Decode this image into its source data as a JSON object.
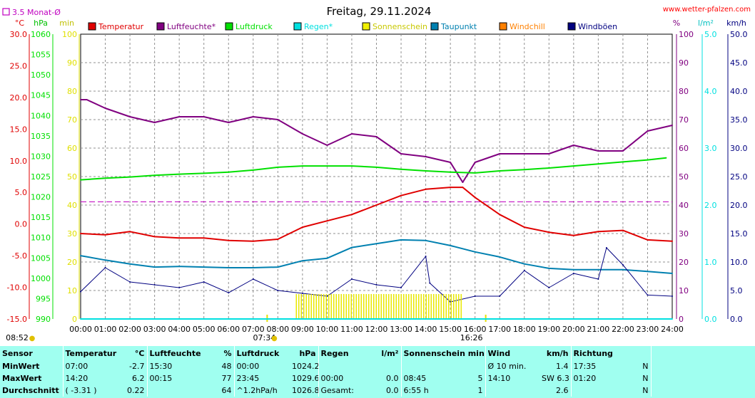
{
  "header": {
    "title": "Freitag, 29.11.2024",
    "site": "www.wetter-pfalzen.com",
    "avg_label": "3.5 Monat-Ø"
  },
  "units": {
    "left1": "°C",
    "left2": "hPa",
    "left3": "min",
    "right1": "%",
    "right2": "l/m²",
    "right3": "km/h"
  },
  "legend": [
    {
      "name": "Temperatur",
      "color": "#e00000"
    },
    {
      "name": "Luftfeuchte*",
      "color": "#800080"
    },
    {
      "name": "Luftdruck",
      "color": "#00e000"
    },
    {
      "name": "Regen*",
      "color": "#00e0e0"
    },
    {
      "name": "Sonnenschein",
      "color": "#f0f000"
    },
    {
      "name": "Taupunkt",
      "color": "#0080b0"
    },
    {
      "name": "Windchill",
      "color": "#ff8000"
    },
    {
      "name": "Windböen",
      "color": "#000080"
    }
  ],
  "axes": {
    "temp_ticks": [
      "30.0",
      "25.0",
      "20.0",
      "15.0",
      "10.0",
      "5.0",
      "0.0",
      "-5.0",
      "-10.0",
      "-15.0"
    ],
    "pressure_ticks": [
      "1060",
      "1055",
      "1050",
      "1045",
      "1040",
      "1035",
      "1030",
      "1025",
      "1020",
      "1015",
      "1010",
      "1005",
      "1000",
      "995",
      "990"
    ],
    "sun_ticks": [
      "100",
      "90",
      "80",
      "70",
      "60",
      "50",
      "40",
      "30",
      "20",
      "10",
      "0"
    ],
    "humidity_ticks": [
      "100",
      "90",
      "80",
      "70",
      "60",
      "50",
      "40",
      "30",
      "20",
      "10",
      "0"
    ],
    "rain_ticks": [
      "5.0",
      "4.0",
      "3.0",
      "2.0",
      "1.0",
      "0.0"
    ],
    "wind_ticks": [
      "50.0",
      "45.0",
      "40.0",
      "35.0",
      "30.0",
      "25.0",
      "20.0",
      "15.0",
      "10.0",
      "5.0",
      "0.0"
    ],
    "x_ticks": [
      "00:00",
      "01:00",
      "02:00",
      "03:00",
      "04:00",
      "05:00",
      "06:00",
      "07:00",
      "08:00",
      "09:00",
      "10:00",
      "11:00",
      "12:00",
      "13:00",
      "14:00",
      "15:00",
      "16:00",
      "17:00",
      "18:00",
      "19:00",
      "20:00",
      "21:00",
      "22:00",
      "23:00",
      "24:00"
    ],
    "sunrise": "07:34",
    "sunset": "16:26",
    "daylight": "08:52",
    "colors": {
      "temp": "#e00000",
      "pressure": "#00e000",
      "sun": "#e0e000",
      "humidity": "#800080",
      "rain": "#00e0e0",
      "wind": "#000080"
    }
  },
  "chart_data": {
    "type": "line",
    "title": "Freitag, 29.11.2024",
    "x_range": [
      "00:00",
      "24:00"
    ],
    "monthly_avg_temp": 3.5,
    "series": [
      {
        "name": "Temperatur",
        "axis": "°C",
        "ylim": [
          -15,
          30
        ],
        "x": [
          "00:00",
          "01:00",
          "02:00",
          "03:00",
          "04:00",
          "05:00",
          "06:00",
          "07:00",
          "08:00",
          "09:00",
          "10:00",
          "11:00",
          "12:00",
          "13:00",
          "14:00",
          "15:00",
          "15:30",
          "16:00",
          "17:00",
          "18:00",
          "19:00",
          "20:00",
          "21:00",
          "22:00",
          "23:00",
          "24:00"
        ],
        "y": [
          -1.5,
          -1.7,
          -1.2,
          -2.0,
          -2.2,
          -2.2,
          -2.6,
          -2.7,
          -2.4,
          -0.5,
          0.5,
          1.5,
          3.0,
          4.5,
          5.5,
          5.8,
          5.8,
          4.2,
          1.5,
          -0.5,
          -1.3,
          -1.8,
          -1.2,
          -1.0,
          -2.5,
          -2.7
        ]
      },
      {
        "name": "Luftfeuchte*",
        "axis": "%",
        "ylim": [
          0,
          100
        ],
        "x": [
          "00:00",
          "00:15",
          "01:00",
          "02:00",
          "03:00",
          "04:00",
          "05:00",
          "06:00",
          "07:00",
          "08:00",
          "09:00",
          "10:00",
          "11:00",
          "12:00",
          "13:00",
          "14:00",
          "15:00",
          "15:30",
          "16:00",
          "17:00",
          "18:00",
          "19:00",
          "20:00",
          "21:00",
          "22:00",
          "23:00",
          "24:00"
        ],
        "y": [
          77,
          77,
          74,
          71,
          69,
          71,
          71,
          69,
          71,
          70,
          65,
          61,
          65,
          64,
          58,
          57,
          55,
          48,
          55,
          58,
          58,
          58,
          61,
          59,
          59,
          66,
          68
        ]
      },
      {
        "name": "Luftdruck",
        "axis": "hPa",
        "ylim": [
          990,
          1060
        ],
        "x": [
          "00:00",
          "01:00",
          "02:00",
          "03:00",
          "04:00",
          "05:00",
          "06:00",
          "07:00",
          "08:00",
          "09:00",
          "10:00",
          "11:00",
          "12:00",
          "13:00",
          "14:00",
          "15:00",
          "16:00",
          "17:00",
          "18:00",
          "19:00",
          "20:00",
          "21:00",
          "22:00",
          "23:00",
          "23:45"
        ],
        "y": [
          1024.2,
          1024.6,
          1024.9,
          1025.3,
          1025.6,
          1025.8,
          1026.1,
          1026.6,
          1027.3,
          1027.6,
          1027.6,
          1027.6,
          1027.3,
          1026.8,
          1026.4,
          1026.1,
          1025.9,
          1026.4,
          1026.7,
          1027.1,
          1027.6,
          1028.1,
          1028.6,
          1029.1,
          1029.6
        ]
      },
      {
        "name": "Taupunkt",
        "axis": "°C",
        "ylim": [
          -15,
          30
        ],
        "x": [
          "00:00",
          "01:00",
          "02:00",
          "03:00",
          "04:00",
          "05:00",
          "06:00",
          "07:00",
          "08:00",
          "09:00",
          "10:00",
          "11:00",
          "12:00",
          "13:00",
          "14:00",
          "15:00",
          "16:00",
          "17:00",
          "18:00",
          "19:00",
          "20:00",
          "21:00",
          "22:00",
          "23:00",
          "24:00"
        ],
        "y": [
          -5.0,
          -5.7,
          -6.3,
          -6.8,
          -6.7,
          -6.8,
          -6.9,
          -6.9,
          -6.8,
          -5.8,
          -5.4,
          -3.7,
          -3.1,
          -2.5,
          -2.6,
          -3.4,
          -4.4,
          -5.2,
          -6.3,
          -7.0,
          -7.2,
          -7.2,
          -7.2,
          -7.5,
          -7.8
        ]
      },
      {
        "name": "Windböen",
        "axis": "km/h",
        "ylim": [
          0,
          50
        ],
        "x": [
          "00:00",
          "01:00",
          "02:00",
          "03:00",
          "04:00",
          "05:00",
          "06:00",
          "07:00",
          "08:00",
          "09:00",
          "10:00",
          "11:00",
          "12:00",
          "13:00",
          "14:00",
          "14:10",
          "15:00",
          "16:00",
          "17:00",
          "18:00",
          "19:00",
          "20:00",
          "21:00",
          "21:20",
          "22:00",
          "23:00",
          "24:00"
        ],
        "y": [
          4.8,
          9.0,
          6.5,
          6.0,
          5.5,
          6.5,
          4.6,
          7.0,
          5.0,
          4.5,
          4.0,
          7.0,
          6.0,
          5.5,
          11.0,
          6.3,
          3.0,
          4.0,
          4.0,
          8.5,
          5.5,
          8.0,
          7.0,
          12.5,
          9.5,
          4.2,
          4.0
        ]
      },
      {
        "name": "Sonnenschein",
        "axis": "min",
        "ylim": [
          0,
          100
        ],
        "x": [
          "08:45",
          "15:30"
        ],
        "y": [
          5,
          5
        ]
      },
      {
        "name": "Regen*",
        "axis": "l/m²",
        "ylim": [
          0,
          5
        ],
        "x": [
          "00:00",
          "24:00"
        ],
        "y": [
          0.0,
          0.0
        ]
      }
    ]
  },
  "stats": {
    "headers": {
      "sensor": "Sensor",
      "temp": "Temperatur",
      "temp_unit": "°C",
      "hum": "Luftfeuchte",
      "hum_unit": "%",
      "press": "Luftdruck",
      "press_unit": "hPa",
      "rain": "Regen",
      "rain_unit": "l/m²",
      "sun": "Sonnenschein min",
      "wind": "Wind",
      "wind_unit": "km/h",
      "dir": "Richtung"
    },
    "rows": [
      {
        "label": "MinWert",
        "temp_time": "07:00",
        "temp_val": "-2.7",
        "hum_time": "15:30",
        "hum_val": "48",
        "press_time": "00:00",
        "press_val": "1024.2",
        "rain_time": "",
        "rain_val": "",
        "sun_time": "",
        "sun_val": "",
        "wind_time": "Ø 10 min.",
        "wind_val": "1.4",
        "dir_time": "17:35",
        "dir_val": "N"
      },
      {
        "label": "MaxWert",
        "temp_time": "14:20",
        "temp_val": "6.2",
        "hum_time": "00:15",
        "hum_val": "77",
        "press_time": "23:45",
        "press_val": "1029.6",
        "rain_time": "00:00",
        "rain_val": "0.0",
        "sun_time": "08:45",
        "sun_val": "5",
        "wind_time": "14:10",
        "wind_val": "SW 6.3",
        "dir_time": "01:20",
        "dir_val": "N"
      },
      {
        "label": "Durchschnitt",
        "temp_time": "( -3.31 )",
        "temp_val": "0.22",
        "hum_time": "",
        "hum_val": "64",
        "press_time": "^1.2hPa/h",
        "press_val": "1026.8",
        "rain_time": "Gesamt:",
        "rain_val": "0.0",
        "sun_time": "6:55 h",
        "sun_val": "1",
        "wind_time": "",
        "wind_val": "2.6",
        "dir_time": "",
        "dir_val": "N"
      }
    ]
  }
}
